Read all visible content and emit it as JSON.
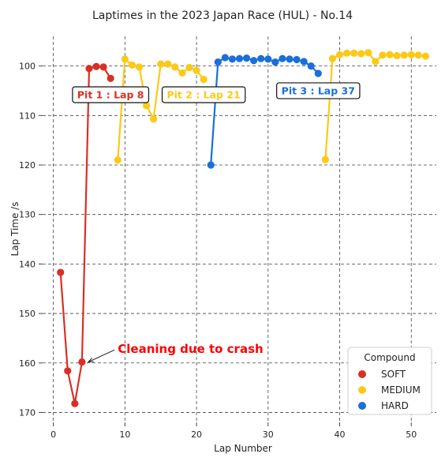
{
  "chart_data": {
    "type": "line",
    "title": "Laptimes in the 2023 Japan Race (HUL) - No.14",
    "xlabel": "Lap Number",
    "ylabel": "Lap Time /s",
    "xlim": [
      -1.5,
      53.5
    ],
    "ylim": [
      172,
      94
    ],
    "y_inverted": true,
    "xticks": [
      0,
      10,
      20,
      30,
      40,
      50
    ],
    "yticks": [
      100,
      110,
      120,
      130,
      140,
      150,
      160,
      170
    ],
    "grid": true,
    "grid_style": "dashed",
    "legend": {
      "title": "Compound",
      "position": "bottom-right",
      "entries": [
        {
          "label": "SOFT",
          "color": "#d93025"
        },
        {
          "label": "MEDIUM",
          "color": "#fcc917"
        },
        {
          "label": "HARD",
          "color": "#1a6fdc"
        }
      ]
    },
    "series": [
      {
        "name": "SOFT",
        "color": "#d93025",
        "x": [
          1,
          2,
          3,
          4,
          5,
          6,
          7,
          8
        ],
        "y": [
          141.7,
          161.6,
          168.2,
          159.8,
          100.5,
          100.1,
          100.2,
          102.5
        ]
      },
      {
        "name": "MEDIUM",
        "color": "#fcc917",
        "x": [
          9,
          10,
          11,
          12,
          13,
          14,
          15,
          16,
          17,
          18,
          19,
          20,
          21
        ],
        "y": [
          119.0,
          98.6,
          99.8,
          100.2,
          108.0,
          110.7,
          99.6,
          99.6,
          100.2,
          101.4,
          100.3,
          100.9,
          102.7
        ]
      },
      {
        "name": "HARD",
        "color": "#1a6fdc",
        "x": [
          22,
          23,
          24,
          25,
          26,
          27,
          28,
          29,
          30,
          31,
          32,
          33,
          34,
          35,
          36,
          37
        ],
        "y": [
          120.0,
          99.2,
          98.3,
          98.6,
          98.5,
          98.4,
          98.9,
          98.5,
          98.6,
          99.2,
          98.5,
          98.6,
          98.7,
          99.1,
          100.0,
          101.5
        ]
      },
      {
        "name": "MEDIUM",
        "color": "#fcc917",
        "x": [
          38,
          39,
          40,
          41,
          42,
          43,
          44,
          45,
          46,
          47,
          48,
          49,
          50,
          51,
          52
        ],
        "y": [
          118.9,
          98.5,
          97.7,
          97.4,
          97.4,
          97.5,
          97.3,
          99.1,
          97.8,
          97.7,
          97.9,
          97.8,
          97.7,
          97.8,
          98.0
        ]
      }
    ],
    "annotations": [
      {
        "text": "Pit 1 : Lap 8",
        "color": "#d93025",
        "x": 8,
        "y": 105.8
      },
      {
        "text": "Pit 2 : Lap 21",
        "color": "#fcc917",
        "x": 21,
        "y": 105.8
      },
      {
        "text": "Pit 3 : Lap 37",
        "color": "#1a6fdc",
        "x": 37,
        "y": 105.0
      },
      {
        "text": "Cleaning due to crash",
        "color": "#ff0000",
        "x": 9,
        "y": 158,
        "arrow_to": [
          4,
          159.8
        ]
      }
    ]
  }
}
